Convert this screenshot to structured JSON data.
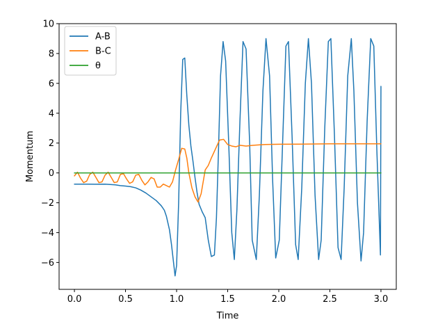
{
  "chart_data": {
    "type": "line",
    "xlabel": "Time",
    "ylabel": "Momentum",
    "xlim": [
      -0.15,
      3.15
    ],
    "ylim": [
      -7.8,
      10.0
    ],
    "xticks": [
      0.0,
      0.5,
      1.0,
      1.5,
      2.0,
      2.5,
      3.0
    ],
    "xtick_labels": [
      "0.0",
      "0.5",
      "1.0",
      "1.5",
      "2.0",
      "2.5",
      "3.0"
    ],
    "yticks": [
      -6,
      -4,
      -2,
      0,
      2,
      4,
      6,
      8,
      10
    ],
    "ytick_labels": [
      "−6",
      "−4",
      "−2",
      "0",
      "2",
      "4",
      "6",
      "8",
      "10"
    ],
    "grid": false,
    "legend_position": "top-left",
    "series": [
      {
        "name": "A-B",
        "color": "#1f77b4",
        "x": [
          0.0,
          0.1,
          0.2,
          0.3,
          0.4,
          0.45,
          0.5,
          0.55,
          0.6,
          0.65,
          0.7,
          0.75,
          0.8,
          0.85,
          0.88,
          0.9,
          0.93,
          0.95,
          0.97,
          0.985,
          1.0,
          1.02,
          1.04,
          1.06,
          1.08,
          1.1,
          1.12,
          1.14,
          1.16,
          1.18,
          1.2,
          1.22,
          1.25,
          1.28,
          1.31,
          1.34,
          1.37,
          1.39,
          1.41,
          1.43,
          1.455,
          1.48,
          1.51,
          1.54,
          1.565,
          1.59,
          1.62,
          1.65,
          1.68,
          1.715,
          1.74,
          1.78,
          1.81,
          1.845,
          1.875,
          1.91,
          1.94,
          1.97,
          2.005,
          2.04,
          2.07,
          2.095,
          2.13,
          2.165,
          2.19,
          2.225,
          2.26,
          2.29,
          2.32,
          2.355,
          2.39,
          2.415,
          2.45,
          2.485,
          2.51,
          2.545,
          2.58,
          2.61,
          2.64,
          2.675,
          2.71,
          2.735,
          2.77,
          2.805,
          2.83,
          2.865,
          2.9,
          2.93,
          2.96,
          2.995,
          3.0
        ],
        "y": [
          -0.75,
          -0.75,
          -0.76,
          -0.75,
          -0.8,
          -0.85,
          -0.88,
          -0.92,
          -1.0,
          -1.15,
          -1.35,
          -1.6,
          -1.85,
          -2.2,
          -2.5,
          -2.9,
          -3.8,
          -4.8,
          -6.0,
          -6.9,
          -6.2,
          -2.0,
          4.0,
          7.6,
          7.7,
          5.2,
          3.2,
          1.8,
          0.8,
          -0.3,
          -1.3,
          -2.1,
          -2.6,
          -3.0,
          -4.5,
          -5.6,
          -5.5,
          -3.0,
          1.5,
          6.5,
          8.8,
          7.5,
          2.0,
          -4.0,
          -5.8,
          -2.5,
          3.5,
          8.8,
          8.3,
          2.0,
          -4.5,
          -5.8,
          -1.5,
          5.5,
          9.0,
          6.5,
          -0.5,
          -5.7,
          -4.5,
          2.5,
          8.5,
          8.8,
          2.5,
          -4.8,
          -5.8,
          -1.0,
          6.0,
          9.0,
          6.0,
          -1.5,
          -5.8,
          -4.5,
          3.0,
          8.8,
          9.0,
          2.5,
          -5.0,
          -5.8,
          -1.0,
          6.5,
          9.0,
          5.5,
          -2.0,
          -5.9,
          -4.0,
          3.5,
          9.0,
          8.5,
          1.5,
          -5.5,
          5.8
        ]
      },
      {
        "name": "B-C",
        "color": "#ff7f0e",
        "x": [
          0.0,
          0.03,
          0.06,
          0.09,
          0.12,
          0.15,
          0.18,
          0.21,
          0.24,
          0.27,
          0.3,
          0.33,
          0.36,
          0.39,
          0.42,
          0.45,
          0.48,
          0.51,
          0.54,
          0.57,
          0.6,
          0.63,
          0.66,
          0.69,
          0.72,
          0.75,
          0.78,
          0.81,
          0.84,
          0.87,
          0.9,
          0.93,
          0.96,
          0.99,
          1.02,
          1.05,
          1.08,
          1.1,
          1.12,
          1.15,
          1.18,
          1.21,
          1.24,
          1.26,
          1.28,
          1.31,
          1.34,
          1.38,
          1.42,
          1.46,
          1.5,
          1.54,
          1.58,
          1.62,
          1.68,
          1.75,
          1.85,
          2.0,
          2.2,
          2.5,
          2.8,
          3.0
        ],
        "y": [
          -0.2,
          0.05,
          -0.35,
          -0.65,
          -0.55,
          -0.1,
          0.05,
          -0.3,
          -0.65,
          -0.6,
          -0.15,
          0.05,
          -0.3,
          -0.65,
          -0.6,
          -0.1,
          -0.05,
          -0.4,
          -0.7,
          -0.6,
          -0.15,
          -0.1,
          -0.5,
          -0.8,
          -0.6,
          -0.3,
          -0.4,
          -0.95,
          -0.95,
          -0.75,
          -0.85,
          -0.95,
          -0.6,
          0.2,
          0.9,
          1.65,
          1.6,
          1.0,
          0.0,
          -1.0,
          -1.6,
          -1.95,
          -1.4,
          -0.6,
          0.2,
          0.5,
          1.0,
          1.6,
          2.2,
          2.25,
          1.9,
          1.8,
          1.75,
          1.85,
          1.8,
          1.85,
          1.9,
          1.92,
          1.93,
          1.95,
          1.95,
          1.95
        ]
      },
      {
        "name": "θ",
        "color": "#2ca02c",
        "x": [
          0.0,
          3.0
        ],
        "y": [
          0.0,
          0.0
        ]
      }
    ]
  }
}
